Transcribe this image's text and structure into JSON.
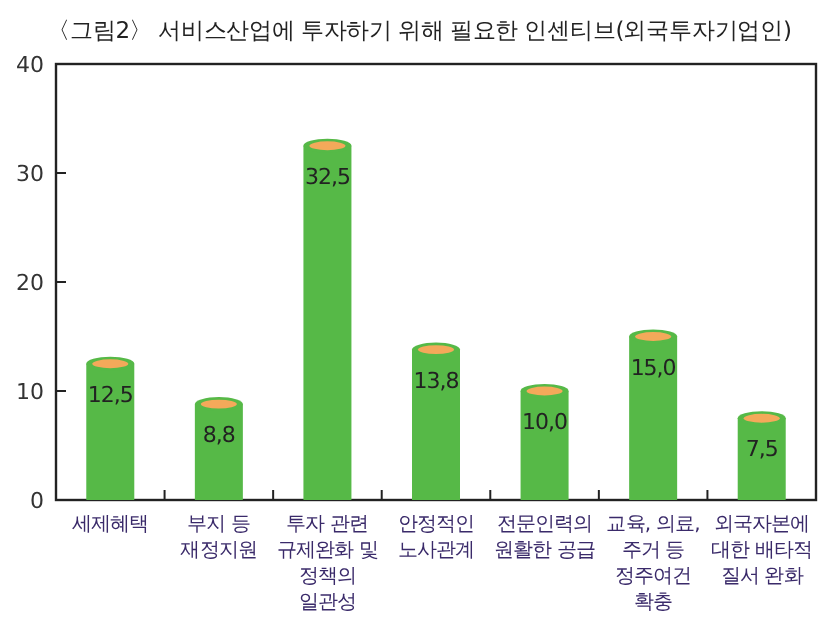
{
  "chart_data": {
    "type": "bar",
    "title": "〈그림2〉 서비스산업에 투자하기 위해 필요한 인센티브(외국투자기업인)",
    "categories": [
      "세제혜택",
      "부지 등 재정지원",
      "투자 관련 규제완화 및 정책의 일관성",
      "안정적인 노사관계",
      "전문인력의 원활한 공급",
      "교육, 의료, 주거 등 정주여건 확충",
      "외국자본에 대한 배타적 질서 완화"
    ],
    "values": [
      12.5,
      8.8,
      32.5,
      13.8,
      10.0,
      15.0,
      7.5
    ],
    "value_labels": [
      "12,5",
      "8,8",
      "32,5",
      "13,8",
      "10,0",
      "15,0",
      "7,5"
    ],
    "color": "#56b947",
    "ylim": [
      0,
      40
    ],
    "yticks": [
      0,
      10,
      20,
      30,
      40
    ]
  }
}
